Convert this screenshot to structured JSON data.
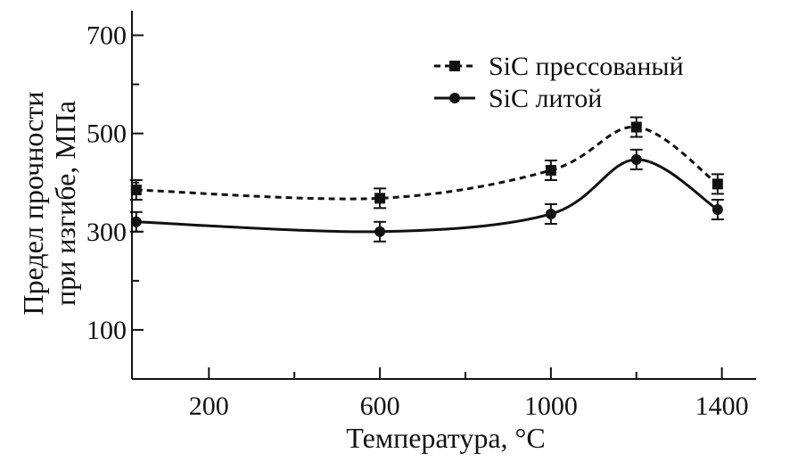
{
  "chart_data": {
    "type": "line",
    "xlabel": "Температура, °C",
    "ylabel_lines": [
      "Предел прочности",
      "при изгибе, МПа"
    ],
    "xlim": [
      20,
      1480
    ],
    "ylim": [
      0,
      750
    ],
    "x_ticks_major": [
      200,
      600,
      1000,
      1400
    ],
    "x_ticks_minor": [
      400,
      800,
      1200
    ],
    "y_ticks_major": [
      100,
      300,
      500,
      700
    ],
    "y_ticks_minor": [
      200,
      400,
      600
    ],
    "legend_position": "top-right",
    "series": [
      {
        "name": "SiC прессованый",
        "marker": "square",
        "line_style": "dashed",
        "color": "#111111",
        "x": [
          30,
          600,
          1000,
          1200,
          1390
        ],
        "y": [
          385,
          368,
          425,
          513,
          397
        ],
        "err": [
          20,
          20,
          20,
          20,
          20
        ]
      },
      {
        "name": "SiC литой",
        "marker": "circle",
        "line_style": "solid",
        "color": "#111111",
        "x": [
          30,
          600,
          1000,
          1200,
          1390
        ],
        "y": [
          320,
          300,
          336,
          447,
          345
        ],
        "err": [
          20,
          20,
          20,
          20,
          20
        ]
      }
    ]
  }
}
